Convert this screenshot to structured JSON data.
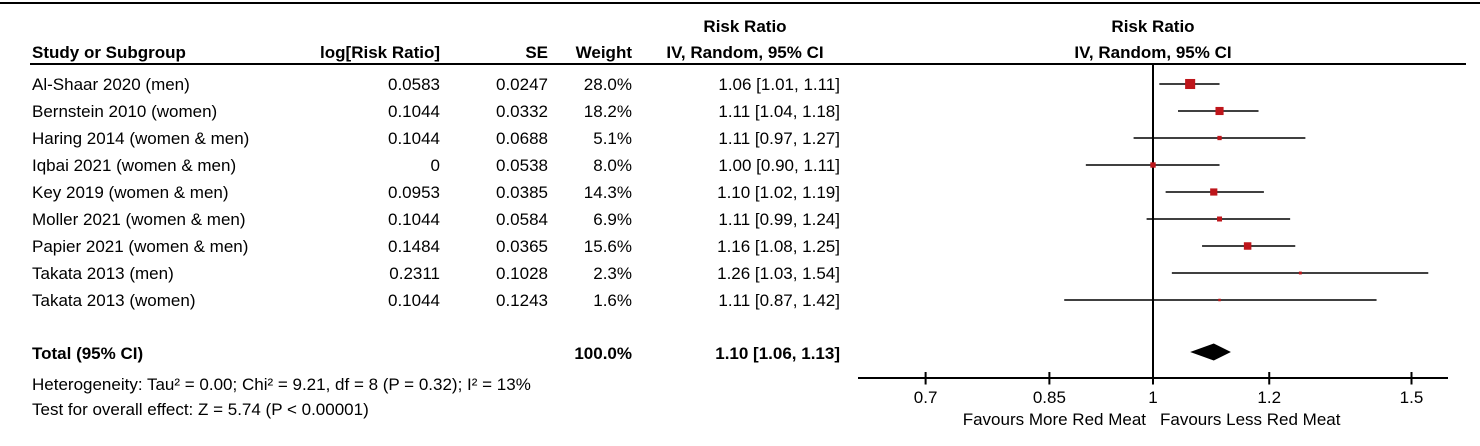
{
  "table": {
    "headers": {
      "effect_title": "Risk Ratio",
      "study": "Study or Subgroup",
      "log_rr": "log[Risk Ratio]",
      "se": "SE",
      "weight": "Weight",
      "ci": "IV, Random, 95% CI"
    },
    "rows": [
      {
        "study": "Al-Shaar 2020 (men)",
        "log_rr": "0.0583",
        "se": "0.0247",
        "weight": "28.0%",
        "ci": "1.06 [1.01, 1.11]"
      },
      {
        "study": "Bernstein 2010 (women)",
        "log_rr": "0.1044",
        "se": "0.0332",
        "weight": "18.2%",
        "ci": "1.11 [1.04, 1.18]"
      },
      {
        "study": "Haring 2014 (women & men)",
        "log_rr": "0.1044",
        "se": "0.0688",
        "weight": "5.1%",
        "ci": "1.11 [0.97, 1.27]"
      },
      {
        "study": "Iqbai 2021 (women & men)",
        "log_rr": "0",
        "se": "0.0538",
        "weight": "8.0%",
        "ci": "1.00 [0.90, 1.11]"
      },
      {
        "study": "Key 2019 (women & men)",
        "log_rr": "0.0953",
        "se": "0.0385",
        "weight": "14.3%",
        "ci": "1.10 [1.02, 1.19]"
      },
      {
        "study": "Moller 2021 (women & men)",
        "log_rr": "0.1044",
        "se": "0.0584",
        "weight": "6.9%",
        "ci": "1.11 [0.99, 1.24]"
      },
      {
        "study": "Papier 2021 (women & men)",
        "log_rr": "0.1484",
        "se": "0.0365",
        "weight": "15.6%",
        "ci": "1.16 [1.08, 1.25]"
      },
      {
        "study": "Takata 2013 (men)",
        "log_rr": "0.2311",
        "se": "0.1028",
        "weight": "2.3%",
        "ci": "1.26 [1.03, 1.54]"
      },
      {
        "study": "Takata 2013 (women)",
        "log_rr": "0.1044",
        "se": "0.1243",
        "weight": "1.6%",
        "ci": "1.11 [0.87, 1.42]"
      }
    ],
    "total": {
      "label": "Total (95% CI)",
      "weight": "100.0%",
      "ci": "1.10 [1.06, 1.13]"
    },
    "footnotes": {
      "heterogeneity": "Heterogeneity: Tau² = 0.00; Chi² = 9.21, df = 8 (P = 0.32); I² = 13%",
      "overall_effect": "Test for overall effect: Z = 5.74 (P < 0.00001)"
    }
  },
  "plot_header": {
    "line1": "Risk Ratio",
    "line2": "IV, Random, 95% CI"
  },
  "chart_data": {
    "type": "forest",
    "effect_measure": "Risk Ratio",
    "model": "IV, Random, 95% CI",
    "x_scale": "log",
    "null_value": 1,
    "axis_ticks": [
      0.7,
      0.85,
      1,
      1.2,
      1.5
    ],
    "axis_range_approx": [
      0.63,
      1.59
    ],
    "favours_left": "Favours More Red Meat",
    "favours_right": "Favours Less Red Meat",
    "marker_color": "#BE161B",
    "studies": [
      {
        "label": "Al-Shaar 2020 (men)",
        "rr": 1.06,
        "low": 1.01,
        "high": 1.11,
        "weight": 28.0
      },
      {
        "label": "Bernstein 2010 (women)",
        "rr": 1.11,
        "low": 1.04,
        "high": 1.18,
        "weight": 18.2
      },
      {
        "label": "Haring 2014 (women & men)",
        "rr": 1.11,
        "low": 0.97,
        "high": 1.27,
        "weight": 5.1
      },
      {
        "label": "Iqbai 2021 (women & men)",
        "rr": 1.0,
        "low": 0.9,
        "high": 1.11,
        "weight": 8.0
      },
      {
        "label": "Key 2019 (women & men)",
        "rr": 1.1,
        "low": 1.02,
        "high": 1.19,
        "weight": 14.3
      },
      {
        "label": "Moller 2021 (women & men)",
        "rr": 1.11,
        "low": 0.99,
        "high": 1.24,
        "weight": 6.9
      },
      {
        "label": "Papier 2021 (women & men)",
        "rr": 1.16,
        "low": 1.08,
        "high": 1.25,
        "weight": 15.6
      },
      {
        "label": "Takata 2013 (men)",
        "rr": 1.26,
        "low": 1.03,
        "high": 1.54,
        "weight": 2.3
      },
      {
        "label": "Takata 2013 (women)",
        "rr": 1.11,
        "low": 0.87,
        "high": 1.42,
        "weight": 1.6
      }
    ],
    "total": {
      "label": "Total (95% CI)",
      "rr": 1.1,
      "low": 1.06,
      "high": 1.13
    }
  }
}
